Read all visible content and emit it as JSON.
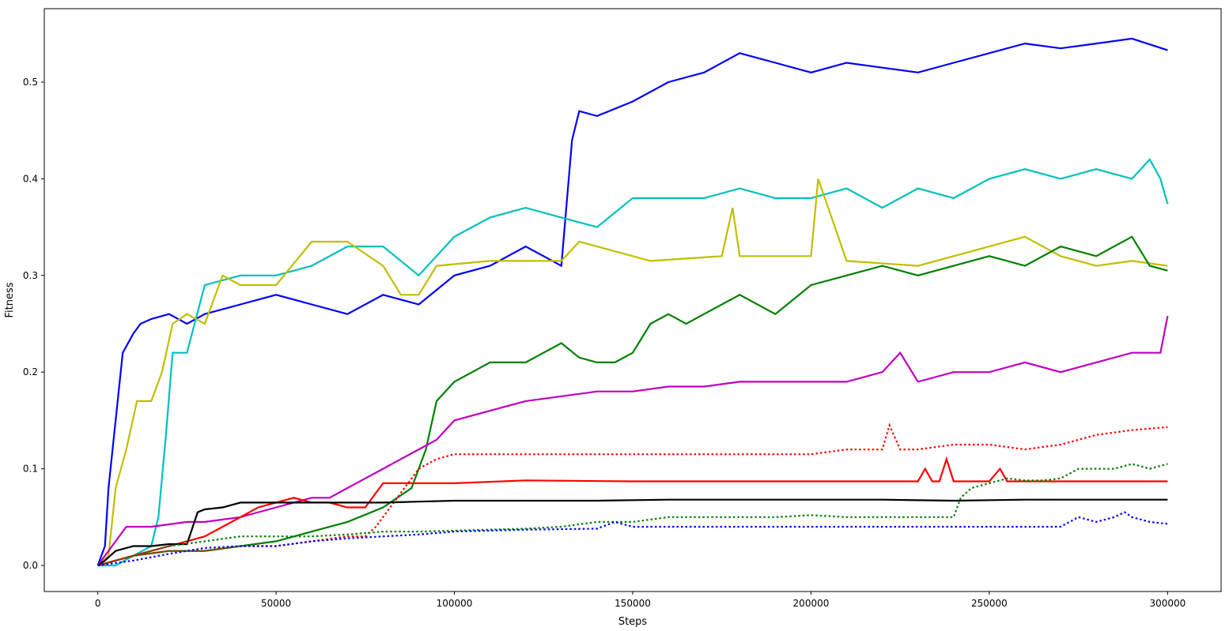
{
  "chart_data": {
    "type": "line",
    "title": "",
    "xlabel": "Steps",
    "ylabel": "Fitness",
    "xlim": [
      -15000,
      315000
    ],
    "ylim": [
      -0.027,
      0.576
    ],
    "xticks": [
      0,
      50000,
      100000,
      150000,
      200000,
      250000,
      300000
    ],
    "xtick_labels": [
      "0",
      "50000",
      "100000",
      "150000",
      "200000",
      "250000",
      "300000"
    ],
    "yticks": [
      0.0,
      0.1,
      0.2,
      0.3,
      0.4,
      0.5
    ],
    "ytick_labels": [
      "0.0",
      "0.1",
      "0.2",
      "0.3",
      "0.4",
      "0.5"
    ],
    "grid": false,
    "legend": null,
    "series": [
      {
        "name": "blue solid",
        "color": "#0000ff",
        "dash": "solid",
        "x": [
          0,
          2000,
          3000,
          5000,
          7000,
          10000,
          12000,
          15000,
          20000,
          25000,
          30000,
          40000,
          50000,
          60000,
          70000,
          80000,
          90000,
          100000,
          110000,
          120000,
          125000,
          130000,
          133000,
          135000,
          140000,
          150000,
          160000,
          170000,
          180000,
          190000,
          200000,
          210000,
          220000,
          230000,
          240000,
          250000,
          260000,
          270000,
          280000,
          290000,
          300000
        ],
        "y": [
          0.0,
          0.02,
          0.08,
          0.15,
          0.22,
          0.24,
          0.25,
          0.255,
          0.26,
          0.25,
          0.26,
          0.27,
          0.28,
          0.27,
          0.26,
          0.28,
          0.27,
          0.3,
          0.31,
          0.33,
          0.32,
          0.31,
          0.44,
          0.47,
          0.465,
          0.48,
          0.5,
          0.51,
          0.53,
          0.52,
          0.51,
          0.52,
          0.515,
          0.51,
          0.52,
          0.53,
          0.54,
          0.535,
          0.54,
          0.545,
          0.533
        ]
      },
      {
        "name": "cyan solid",
        "color": "#00bfbf",
        "dash": "solid",
        "x": [
          0,
          5000,
          10000,
          15000,
          17000,
          19000,
          21000,
          25000,
          30000,
          40000,
          50000,
          60000,
          70000,
          80000,
          90000,
          100000,
          110000,
          120000,
          130000,
          140000,
          150000,
          160000,
          170000,
          180000,
          190000,
          200000,
          210000,
          220000,
          230000,
          240000,
          250000,
          260000,
          270000,
          280000,
          290000,
          295000,
          298000,
          300000
        ],
        "y": [
          0.0,
          0.0,
          0.01,
          0.02,
          0.05,
          0.13,
          0.22,
          0.22,
          0.29,
          0.3,
          0.3,
          0.31,
          0.33,
          0.33,
          0.3,
          0.34,
          0.36,
          0.37,
          0.36,
          0.35,
          0.38,
          0.38,
          0.38,
          0.39,
          0.38,
          0.38,
          0.39,
          0.37,
          0.39,
          0.38,
          0.4,
          0.41,
          0.4,
          0.41,
          0.4,
          0.42,
          0.4,
          0.374
        ]
      },
      {
        "name": "yellow solid",
        "color": "#bfbf00",
        "dash": "solid",
        "x": [
          0,
          3000,
          5000,
          8000,
          11000,
          15000,
          18000,
          21000,
          25000,
          30000,
          35000,
          40000,
          50000,
          60000,
          70000,
          80000,
          85000,
          90000,
          95000,
          110000,
          130000,
          135000,
          155000,
          175000,
          178000,
          180000,
          200000,
          202000,
          210000,
          230000,
          240000,
          250000,
          260000,
          270000,
          280000,
          290000,
          300000
        ],
        "y": [
          0.0,
          0.01,
          0.08,
          0.12,
          0.17,
          0.17,
          0.2,
          0.25,
          0.26,
          0.25,
          0.3,
          0.29,
          0.29,
          0.335,
          0.335,
          0.31,
          0.28,
          0.28,
          0.31,
          0.315,
          0.315,
          0.335,
          0.315,
          0.32,
          0.37,
          0.32,
          0.32,
          0.4,
          0.315,
          0.31,
          0.32,
          0.33,
          0.34,
          0.32,
          0.31,
          0.315,
          0.31
        ]
      },
      {
        "name": "green solid",
        "color": "#008000",
        "dash": "solid",
        "x": [
          0,
          5000,
          10000,
          20000,
          30000,
          40000,
          50000,
          60000,
          70000,
          80000,
          88000,
          92000,
          95000,
          100000,
          105000,
          110000,
          120000,
          125000,
          130000,
          135000,
          140000,
          145000,
          150000,
          155000,
          160000,
          165000,
          170000,
          180000,
          190000,
          200000,
          210000,
          220000,
          230000,
          240000,
          250000,
          260000,
          270000,
          280000,
          290000,
          295000,
          300000
        ],
        "y": [
          0.0,
          0.005,
          0.01,
          0.015,
          0.015,
          0.02,
          0.025,
          0.035,
          0.045,
          0.06,
          0.08,
          0.12,
          0.17,
          0.19,
          0.2,
          0.21,
          0.21,
          0.22,
          0.23,
          0.215,
          0.21,
          0.21,
          0.22,
          0.25,
          0.26,
          0.25,
          0.26,
          0.28,
          0.26,
          0.29,
          0.3,
          0.31,
          0.3,
          0.31,
          0.32,
          0.31,
          0.33,
          0.32,
          0.34,
          0.31,
          0.305
        ]
      },
      {
        "name": "magenta solid",
        "color": "#bf00bf",
        "dash": "solid",
        "x": [
          0,
          2000,
          4000,
          8000,
          15000,
          25000,
          30000,
          40000,
          50000,
          55000,
          60000,
          65000,
          70000,
          75000,
          80000,
          85000,
          90000,
          95000,
          100000,
          110000,
          120000,
          130000,
          140000,
          150000,
          160000,
          170000,
          180000,
          190000,
          200000,
          210000,
          220000,
          225000,
          230000,
          240000,
          250000,
          260000,
          270000,
          280000,
          290000,
          298000,
          300000
        ],
        "y": [
          0.0,
          0.01,
          0.02,
          0.04,
          0.04,
          0.045,
          0.045,
          0.05,
          0.06,
          0.065,
          0.07,
          0.07,
          0.08,
          0.09,
          0.1,
          0.11,
          0.12,
          0.13,
          0.15,
          0.16,
          0.17,
          0.175,
          0.18,
          0.18,
          0.185,
          0.185,
          0.19,
          0.19,
          0.19,
          0.19,
          0.2,
          0.22,
          0.19,
          0.2,
          0.2,
          0.21,
          0.2,
          0.21,
          0.22,
          0.22,
          0.258
        ]
      },
      {
        "name": "red dotted",
        "color": "#ff0000",
        "dash": "dotted",
        "x": [
          0,
          10000,
          20000,
          30000,
          40000,
          50000,
          60000,
          70000,
          75000,
          78000,
          82000,
          86000,
          90000,
          95000,
          100000,
          120000,
          140000,
          160000,
          180000,
          200000,
          210000,
          220000,
          222000,
          225000,
          230000,
          240000,
          250000,
          260000,
          270000,
          280000,
          290000,
          300000
        ],
        "y": [
          0.0,
          0.01,
          0.015,
          0.015,
          0.02,
          0.02,
          0.025,
          0.03,
          0.03,
          0.04,
          0.06,
          0.08,
          0.1,
          0.11,
          0.115,
          0.115,
          0.115,
          0.115,
          0.115,
          0.115,
          0.12,
          0.12,
          0.145,
          0.12,
          0.12,
          0.125,
          0.125,
          0.12,
          0.125,
          0.135,
          0.14,
          0.143
        ]
      },
      {
        "name": "red solid",
        "color": "#ff0000",
        "dash": "solid",
        "x": [
          0,
          5000,
          10000,
          15000,
          20000,
          25000,
          30000,
          35000,
          40000,
          45000,
          50000,
          55000,
          60000,
          65000,
          70000,
          75000,
          80000,
          90000,
          100000,
          120000,
          150000,
          180000,
          200000,
          220000,
          230000,
          232000,
          234000,
          236000,
          238000,
          240000,
          250000,
          253000,
          255000,
          270000,
          300000
        ],
        "y": [
          0.0,
          0.005,
          0.01,
          0.015,
          0.02,
          0.025,
          0.03,
          0.04,
          0.05,
          0.06,
          0.065,
          0.07,
          0.065,
          0.065,
          0.06,
          0.06,
          0.085,
          0.085,
          0.085,
          0.088,
          0.087,
          0.087,
          0.087,
          0.087,
          0.087,
          0.1,
          0.087,
          0.087,
          0.11,
          0.087,
          0.087,
          0.1,
          0.087,
          0.087,
          0.087
        ]
      },
      {
        "name": "black solid",
        "color": "#000000",
        "dash": "solid",
        "x": [
          0,
          2000,
          5000,
          10000,
          15000,
          20000,
          25000,
          28000,
          30000,
          35000,
          40000,
          50000,
          60000,
          70000,
          80000,
          90000,
          100000,
          120000,
          140000,
          160000,
          180000,
          200000,
          220000,
          240000,
          260000,
          280000,
          300000
        ],
        "y": [
          0.0,
          0.005,
          0.015,
          0.02,
          0.02,
          0.022,
          0.022,
          0.055,
          0.058,
          0.06,
          0.065,
          0.065,
          0.065,
          0.065,
          0.065,
          0.066,
          0.067,
          0.067,
          0.067,
          0.068,
          0.068,
          0.068,
          0.068,
          0.067,
          0.068,
          0.068,
          0.068
        ]
      },
      {
        "name": "green dotted",
        "color": "#008000",
        "dash": "dotted",
        "x": [
          0,
          10000,
          20000,
          30000,
          40000,
          50000,
          60000,
          70000,
          80000,
          90000,
          100000,
          120000,
          130000,
          140000,
          150000,
          160000,
          170000,
          180000,
          190000,
          200000,
          210000,
          220000,
          230000,
          240000,
          242000,
          245000,
          250000,
          255000,
          260000,
          265000,
          270000,
          275000,
          280000,
          285000,
          290000,
          295000,
          300000
        ],
        "y": [
          0.0,
          0.01,
          0.02,
          0.025,
          0.03,
          0.03,
          0.03,
          0.032,
          0.035,
          0.035,
          0.036,
          0.038,
          0.04,
          0.045,
          0.045,
          0.05,
          0.05,
          0.05,
          0.05,
          0.052,
          0.05,
          0.05,
          0.05,
          0.05,
          0.07,
          0.08,
          0.085,
          0.09,
          0.088,
          0.088,
          0.09,
          0.1,
          0.1,
          0.1,
          0.105,
          0.1,
          0.105
        ]
      },
      {
        "name": "blue dotted",
        "color": "#0000ff",
        "dash": "dotted",
        "x": [
          0,
          10000,
          20000,
          30000,
          40000,
          50000,
          60000,
          70000,
          80000,
          90000,
          100000,
          120000,
          140000,
          145000,
          150000,
          160000,
          180000,
          200000,
          220000,
          240000,
          260000,
          270000,
          275000,
          280000,
          285000,
          288000,
          290000,
          295000,
          300000
        ],
        "y": [
          0.0,
          0.005,
          0.012,
          0.018,
          0.02,
          0.02,
          0.025,
          0.028,
          0.03,
          0.032,
          0.035,
          0.037,
          0.038,
          0.045,
          0.04,
          0.04,
          0.04,
          0.04,
          0.04,
          0.04,
          0.04,
          0.04,
          0.05,
          0.045,
          0.05,
          0.055,
          0.05,
          0.045,
          0.043
        ]
      }
    ]
  }
}
